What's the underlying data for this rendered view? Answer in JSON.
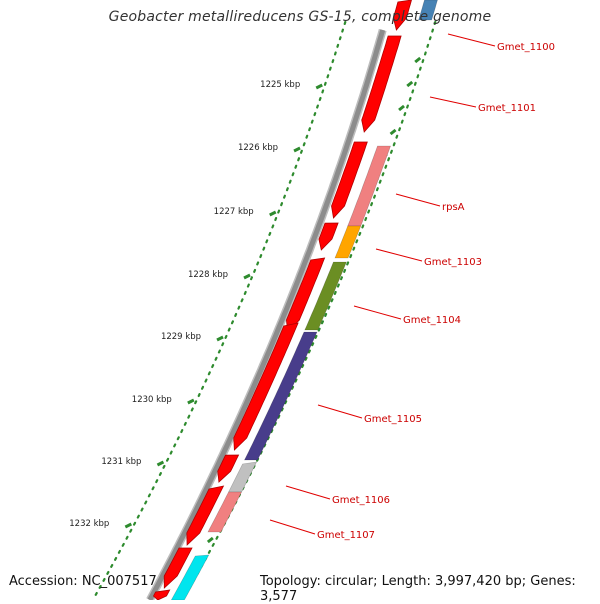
{
  "title": "Geobacter metallireducens GS-15, complete genome",
  "footer": {
    "accession": "Accession: NC_007517",
    "summary": "Topology: circular; Length: 3,997,420 bp; Genes: 3,577"
  },
  "kbp_ticks": [
    "1225 kbp",
    "1226 kbp",
    "1227 kbp",
    "1228 kbp",
    "1229 kbp",
    "1230 kbp",
    "1231 kbp",
    "1232 kbp"
  ],
  "gene_labels": [
    "Gmet_1100",
    "Gmet_1101",
    "rpsA",
    "Gmet_1103",
    "Gmet_1104",
    "Gmet_1105",
    "Gmet_1106",
    "Gmet_1107"
  ],
  "colors": {
    "backbone": "#8c8c8c",
    "forward_gene": "#ff0000",
    "label": "#cc0000",
    "tick": "#2e8b2e",
    "rpsA": "#f08080",
    "Gmet_1103": "#ffa500",
    "Gmet_1104": "#6b8e23",
    "Gmet_1105": "#483d8b",
    "Gmet_1106": "#c0c0c0",
    "Gmet_1107": "#f08080",
    "Gmet_1100": "#4682b4",
    "cyan_gene": "#00e5ee"
  }
}
